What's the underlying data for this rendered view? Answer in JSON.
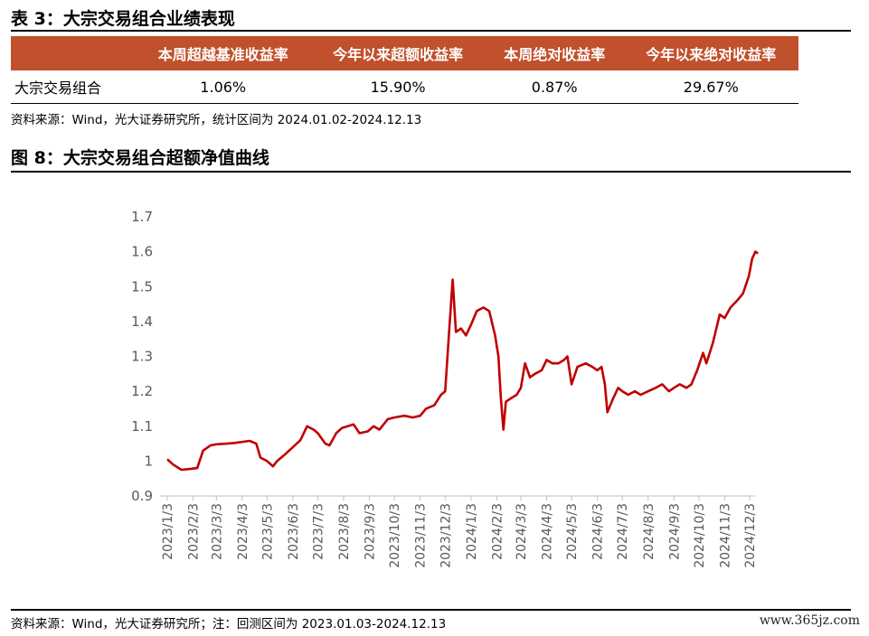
{
  "table": {
    "title": "表 3：大宗交易组合业绩表现",
    "headers": [
      "",
      "本周超越基准收益率",
      "今年以来超额收益率",
      "本周绝对收益率",
      "今年以来绝对收益率"
    ],
    "row": [
      "大宗交易组合",
      "1.06%",
      "15.90%",
      "0.87%",
      "29.67%"
    ],
    "source": "资料来源：Wind，光大证券研究所，统计区间为 2024.01.02-2024.12.13"
  },
  "figure": {
    "title": "图 8：大宗交易组合超额净值曲线",
    "source": "资料来源：Wind，光大证券研究所；注：回测区间为 2023.01.03-2024.12.13",
    "watermark": "www.365jz.com"
  },
  "colors": {
    "header_bg": "#c1502c",
    "line": "#c00000",
    "axis_text": "#595959"
  },
  "chart_data": {
    "type": "line",
    "ylim": [
      0.9,
      1.7
    ],
    "y_ticks": [
      "0.9",
      "1",
      "1.1",
      "1.2",
      "1.3",
      "1.4",
      "1.5",
      "1.6",
      "1.7"
    ],
    "x_ticks": [
      "2023/1/3",
      "2023/2/3",
      "2023/3/3",
      "2023/4/3",
      "2023/5/3",
      "2023/6/3",
      "2023/7/3",
      "2023/8/3",
      "2023/9/3",
      "2023/10/3",
      "2023/11/3",
      "2023/12/3",
      "2024/1/3",
      "2024/2/3",
      "2024/3/3",
      "2024/4/3",
      "2024/5/3",
      "2024/6/3",
      "2024/7/3",
      "2024/8/3",
      "2024/9/3",
      "2024/10/3",
      "2024/11/3",
      "2024/12/3"
    ],
    "series": [
      {
        "points": [
          [
            "2023-01-03",
            1.005
          ],
          [
            "2023-01-10",
            0.99
          ],
          [
            "2023-01-20",
            0.975
          ],
          [
            "2023-02-01",
            0.978
          ],
          [
            "2023-02-08",
            0.98
          ],
          [
            "2023-02-15",
            1.03
          ],
          [
            "2023-02-24",
            1.045
          ],
          [
            "2023-03-03",
            1.048
          ],
          [
            "2023-03-15",
            1.05
          ],
          [
            "2023-03-25",
            1.052
          ],
          [
            "2023-04-03",
            1.055
          ],
          [
            "2023-04-12",
            1.058
          ],
          [
            "2023-04-20",
            1.05
          ],
          [
            "2023-04-25",
            1.01
          ],
          [
            "2023-05-03",
            1.0
          ],
          [
            "2023-05-10",
            0.985
          ],
          [
            "2023-05-15",
            1.0
          ],
          [
            "2023-05-25",
            1.02
          ],
          [
            "2023-06-03",
            1.04
          ],
          [
            "2023-06-12",
            1.06
          ],
          [
            "2023-06-20",
            1.1
          ],
          [
            "2023-06-28",
            1.09
          ],
          [
            "2023-07-03",
            1.08
          ],
          [
            "2023-07-12",
            1.05
          ],
          [
            "2023-07-17",
            1.045
          ],
          [
            "2023-07-25",
            1.08
          ],
          [
            "2023-08-01",
            1.095
          ],
          [
            "2023-08-08",
            1.1
          ],
          [
            "2023-08-15",
            1.105
          ],
          [
            "2023-08-22",
            1.08
          ],
          [
            "2023-09-01",
            1.085
          ],
          [
            "2023-09-08",
            1.1
          ],
          [
            "2023-09-15",
            1.09
          ],
          [
            "2023-09-25",
            1.12
          ],
          [
            "2023-10-03",
            1.125
          ],
          [
            "2023-10-15",
            1.13
          ],
          [
            "2023-10-25",
            1.125
          ],
          [
            "2023-11-03",
            1.13
          ],
          [
            "2023-11-10",
            1.15
          ],
          [
            "2023-11-20",
            1.16
          ],
          [
            "2023-11-28",
            1.19
          ],
          [
            "2023-12-03",
            1.2
          ],
          [
            "2023-12-08",
            1.38
          ],
          [
            "2023-12-12",
            1.52
          ],
          [
            "2023-12-16",
            1.37
          ],
          [
            "2023-12-22",
            1.38
          ],
          [
            "2023-12-28",
            1.36
          ],
          [
            "2024-01-03",
            1.39
          ],
          [
            "2024-01-10",
            1.43
          ],
          [
            "2024-01-18",
            1.44
          ],
          [
            "2024-01-25",
            1.43
          ],
          [
            "2024-02-01",
            1.36
          ],
          [
            "2024-02-05",
            1.3
          ],
          [
            "2024-02-08",
            1.18
          ],
          [
            "2024-02-11",
            1.09
          ],
          [
            "2024-02-14",
            1.17
          ],
          [
            "2024-02-20",
            1.18
          ],
          [
            "2024-02-27",
            1.19
          ],
          [
            "2024-03-03",
            1.21
          ],
          [
            "2024-03-08",
            1.28
          ],
          [
            "2024-03-14",
            1.24
          ],
          [
            "2024-03-20",
            1.25
          ],
          [
            "2024-03-28",
            1.26
          ],
          [
            "2024-04-03",
            1.29
          ],
          [
            "2024-04-10",
            1.28
          ],
          [
            "2024-04-17",
            1.28
          ],
          [
            "2024-04-24",
            1.29
          ],
          [
            "2024-04-28",
            1.3
          ],
          [
            "2024-05-03",
            1.22
          ],
          [
            "2024-05-10",
            1.27
          ],
          [
            "2024-05-20",
            1.28
          ],
          [
            "2024-05-28",
            1.27
          ],
          [
            "2024-06-03",
            1.26
          ],
          [
            "2024-06-08",
            1.27
          ],
          [
            "2024-06-12",
            1.22
          ],
          [
            "2024-06-15",
            1.14
          ],
          [
            "2024-06-22",
            1.18
          ],
          [
            "2024-06-28",
            1.21
          ],
          [
            "2024-07-03",
            1.2
          ],
          [
            "2024-07-10",
            1.19
          ],
          [
            "2024-07-18",
            1.2
          ],
          [
            "2024-07-25",
            1.19
          ],
          [
            "2024-08-03",
            1.2
          ],
          [
            "2024-08-12",
            1.21
          ],
          [
            "2024-08-20",
            1.22
          ],
          [
            "2024-08-28",
            1.2
          ],
          [
            "2024-09-03",
            1.21
          ],
          [
            "2024-09-10",
            1.22
          ],
          [
            "2024-09-18",
            1.21
          ],
          [
            "2024-09-24",
            1.22
          ],
          [
            "2024-10-01",
            1.26
          ],
          [
            "2024-10-08",
            1.31
          ],
          [
            "2024-10-12",
            1.28
          ],
          [
            "2024-10-20",
            1.34
          ],
          [
            "2024-10-28",
            1.42
          ],
          [
            "2024-11-03",
            1.41
          ],
          [
            "2024-11-10",
            1.44
          ],
          [
            "2024-11-18",
            1.46
          ],
          [
            "2024-11-25",
            1.48
          ],
          [
            "2024-12-02",
            1.53
          ],
          [
            "2024-12-06",
            1.58
          ],
          [
            "2024-12-10",
            1.6
          ],
          [
            "2024-12-13",
            1.595
          ]
        ]
      }
    ]
  }
}
